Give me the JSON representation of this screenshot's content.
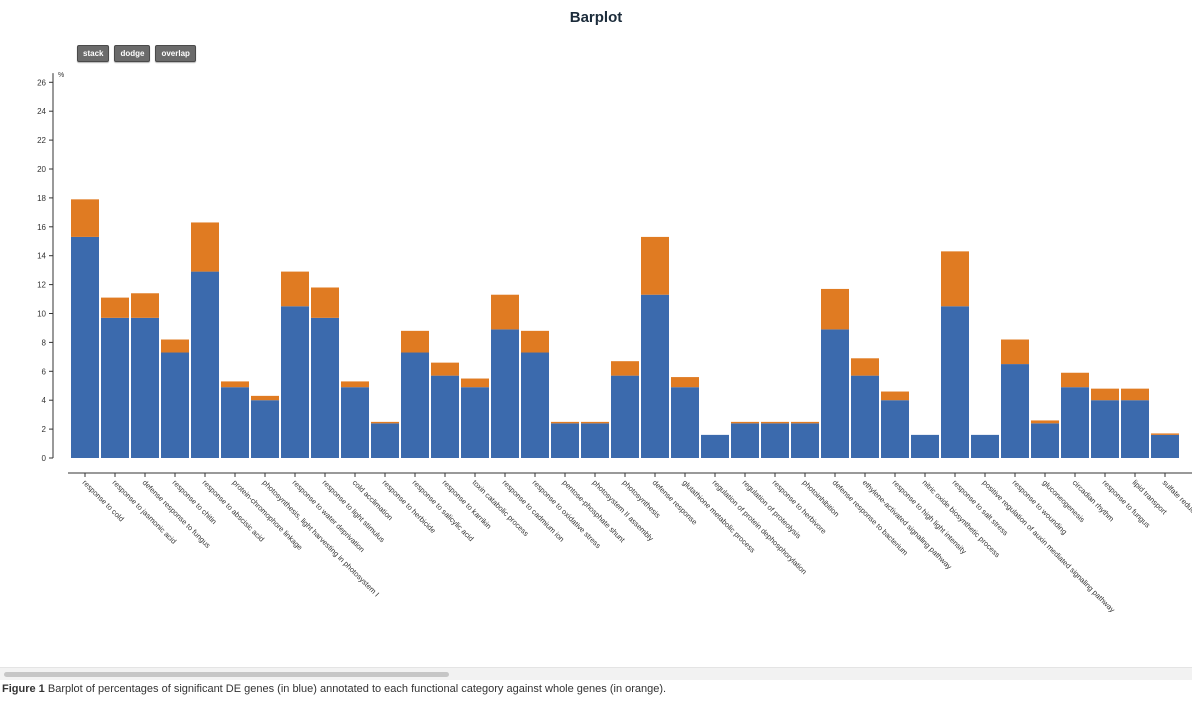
{
  "buttons": {
    "stack": "stack",
    "dodge": "dodge",
    "overlap": "overlap"
  },
  "caption": {
    "label": "Figure 1",
    "text": "Barplot of percentages of significant DE genes (in blue) annotated to each functional category against whole genes (in orange)."
  },
  "colors": {
    "de": "#3b6aad",
    "whole": "#e07b22",
    "axis": "#333333"
  },
  "chart_data": {
    "type": "bar",
    "title": "Barplot",
    "ylabel": "%",
    "xlabel": "",
    "ylim": [
      0,
      26.5
    ],
    "yticks": [
      0,
      2,
      4,
      6,
      8,
      10,
      12,
      14,
      16,
      18,
      20,
      22,
      24,
      26
    ],
    "mode": "stack",
    "categories": [
      "response to cold",
      "response to jasmonic acid",
      "defense response to fungus",
      "response to chitin",
      "response to abscisic acid",
      "protein-chromophore linkage",
      "photosynthesis, light harvesting in photosystem I",
      "response to water deprivation",
      "response to light stimulus",
      "cold acclimation",
      "response to herbicide",
      "response to salicylic acid",
      "response to karrikin",
      "toxin catabolic process",
      "response to cadmium ion",
      "response to oxidative stress",
      "pentose-phosphate shunt",
      "photosystem II assembly",
      "photosynthesis",
      "defense response",
      "glutathione metabolic process",
      "regulation of protein dephosphorylation",
      "regulation of proteolysis",
      "response to herbivore",
      "photoinhibition",
      "defense response to bacterium",
      "ethylene-activated signaling pathway",
      "response to high light intensity",
      "nitric oxide biosynthetic process",
      "response to salt stress",
      "positive regulation of auxin mediated signaling pathway",
      "response to wounding",
      "gluconeogenesis",
      "circadian rhythm",
      "response to fungus",
      "lipid transport",
      "sulfate reduction"
    ],
    "series": [
      {
        "name": "DE genes",
        "values": [
          15.3,
          9.7,
          9.7,
          7.3,
          12.9,
          4.9,
          4.0,
          10.5,
          9.7,
          4.9,
          2.4,
          7.3,
          5.7,
          4.9,
          8.9,
          7.3,
          2.4,
          2.4,
          5.7,
          11.3,
          4.9,
          1.6,
          2.4,
          2.4,
          2.4,
          8.9,
          5.7,
          4.0,
          1.6,
          10.5,
          1.6,
          6.5,
          2.4,
          4.9,
          4.0,
          4.0,
          1.6
        ]
      },
      {
        "name": "whole genes",
        "values": [
          2.6,
          1.4,
          1.7,
          0.9,
          3.4,
          0.4,
          0.3,
          2.4,
          2.1,
          0.4,
          0.1,
          1.5,
          0.9,
          0.6,
          2.4,
          1.5,
          0.1,
          0.1,
          1.0,
          4.0,
          0.7,
          0.0,
          0.1,
          0.1,
          0.1,
          2.8,
          1.2,
          0.6,
          0.0,
          3.8,
          0.0,
          1.7,
          0.2,
          1.0,
          0.8,
          0.8,
          0.1
        ]
      }
    ]
  }
}
